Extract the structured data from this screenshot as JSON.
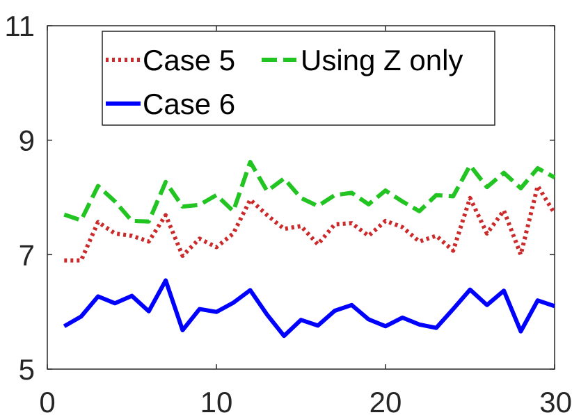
{
  "chart_data": {
    "type": "line",
    "title": "",
    "xlabel": "",
    "ylabel": "",
    "xlim": [
      0,
      30
    ],
    "ylim": [
      5,
      11
    ],
    "xticks": [
      0,
      10,
      20,
      30
    ],
    "xtick_labels": [
      "0",
      "10",
      "20",
      "30"
    ],
    "yticks": [
      5,
      7,
      9,
      11
    ],
    "ytick_labels": [
      "5",
      "7",
      "9",
      "11"
    ],
    "grid": false,
    "legend_position": "top",
    "x": [
      1,
      2,
      3,
      4,
      5,
      6,
      7,
      8,
      9,
      10,
      11,
      12,
      13,
      14,
      15,
      16,
      17,
      18,
      19,
      20,
      21,
      22,
      23,
      24,
      25,
      26,
      27,
      28,
      29,
      30
    ],
    "series": [
      {
        "name": "Case 5",
        "color": "#cc2a2a",
        "style": "dotted",
        "values": [
          6.9,
          6.9,
          7.57,
          7.37,
          7.33,
          7.23,
          7.69,
          6.98,
          7.28,
          7.13,
          7.37,
          7.96,
          7.69,
          7.45,
          7.5,
          7.18,
          7.53,
          7.55,
          7.33,
          7.59,
          7.48,
          7.23,
          7.33,
          7.07,
          7.99,
          7.37,
          7.77,
          7.0,
          8.2,
          7.72
        ]
      },
      {
        "name": "Using Z only",
        "color": "#22c422",
        "style": "dashed",
        "values": [
          7.7,
          7.6,
          8.2,
          7.93,
          7.59,
          7.58,
          8.27,
          7.84,
          7.87,
          8.04,
          7.76,
          8.62,
          8.11,
          8.33,
          7.99,
          7.85,
          8.04,
          8.08,
          7.88,
          8.12,
          7.93,
          7.76,
          8.04,
          8.02,
          8.56,
          8.18,
          8.43,
          8.16,
          8.51,
          8.35
        ]
      },
      {
        "name": "Case 6",
        "color": "#0000ff",
        "style": "solid",
        "values": [
          5.75,
          5.92,
          6.27,
          6.15,
          6.28,
          6.01,
          6.55,
          5.68,
          6.05,
          6.0,
          6.16,
          6.38,
          5.95,
          5.58,
          5.86,
          5.76,
          6.02,
          6.12,
          5.87,
          5.75,
          5.9,
          5.78,
          5.72,
          6.05,
          6.39,
          6.12,
          6.37,
          5.66,
          6.2,
          6.1
        ]
      }
    ]
  }
}
